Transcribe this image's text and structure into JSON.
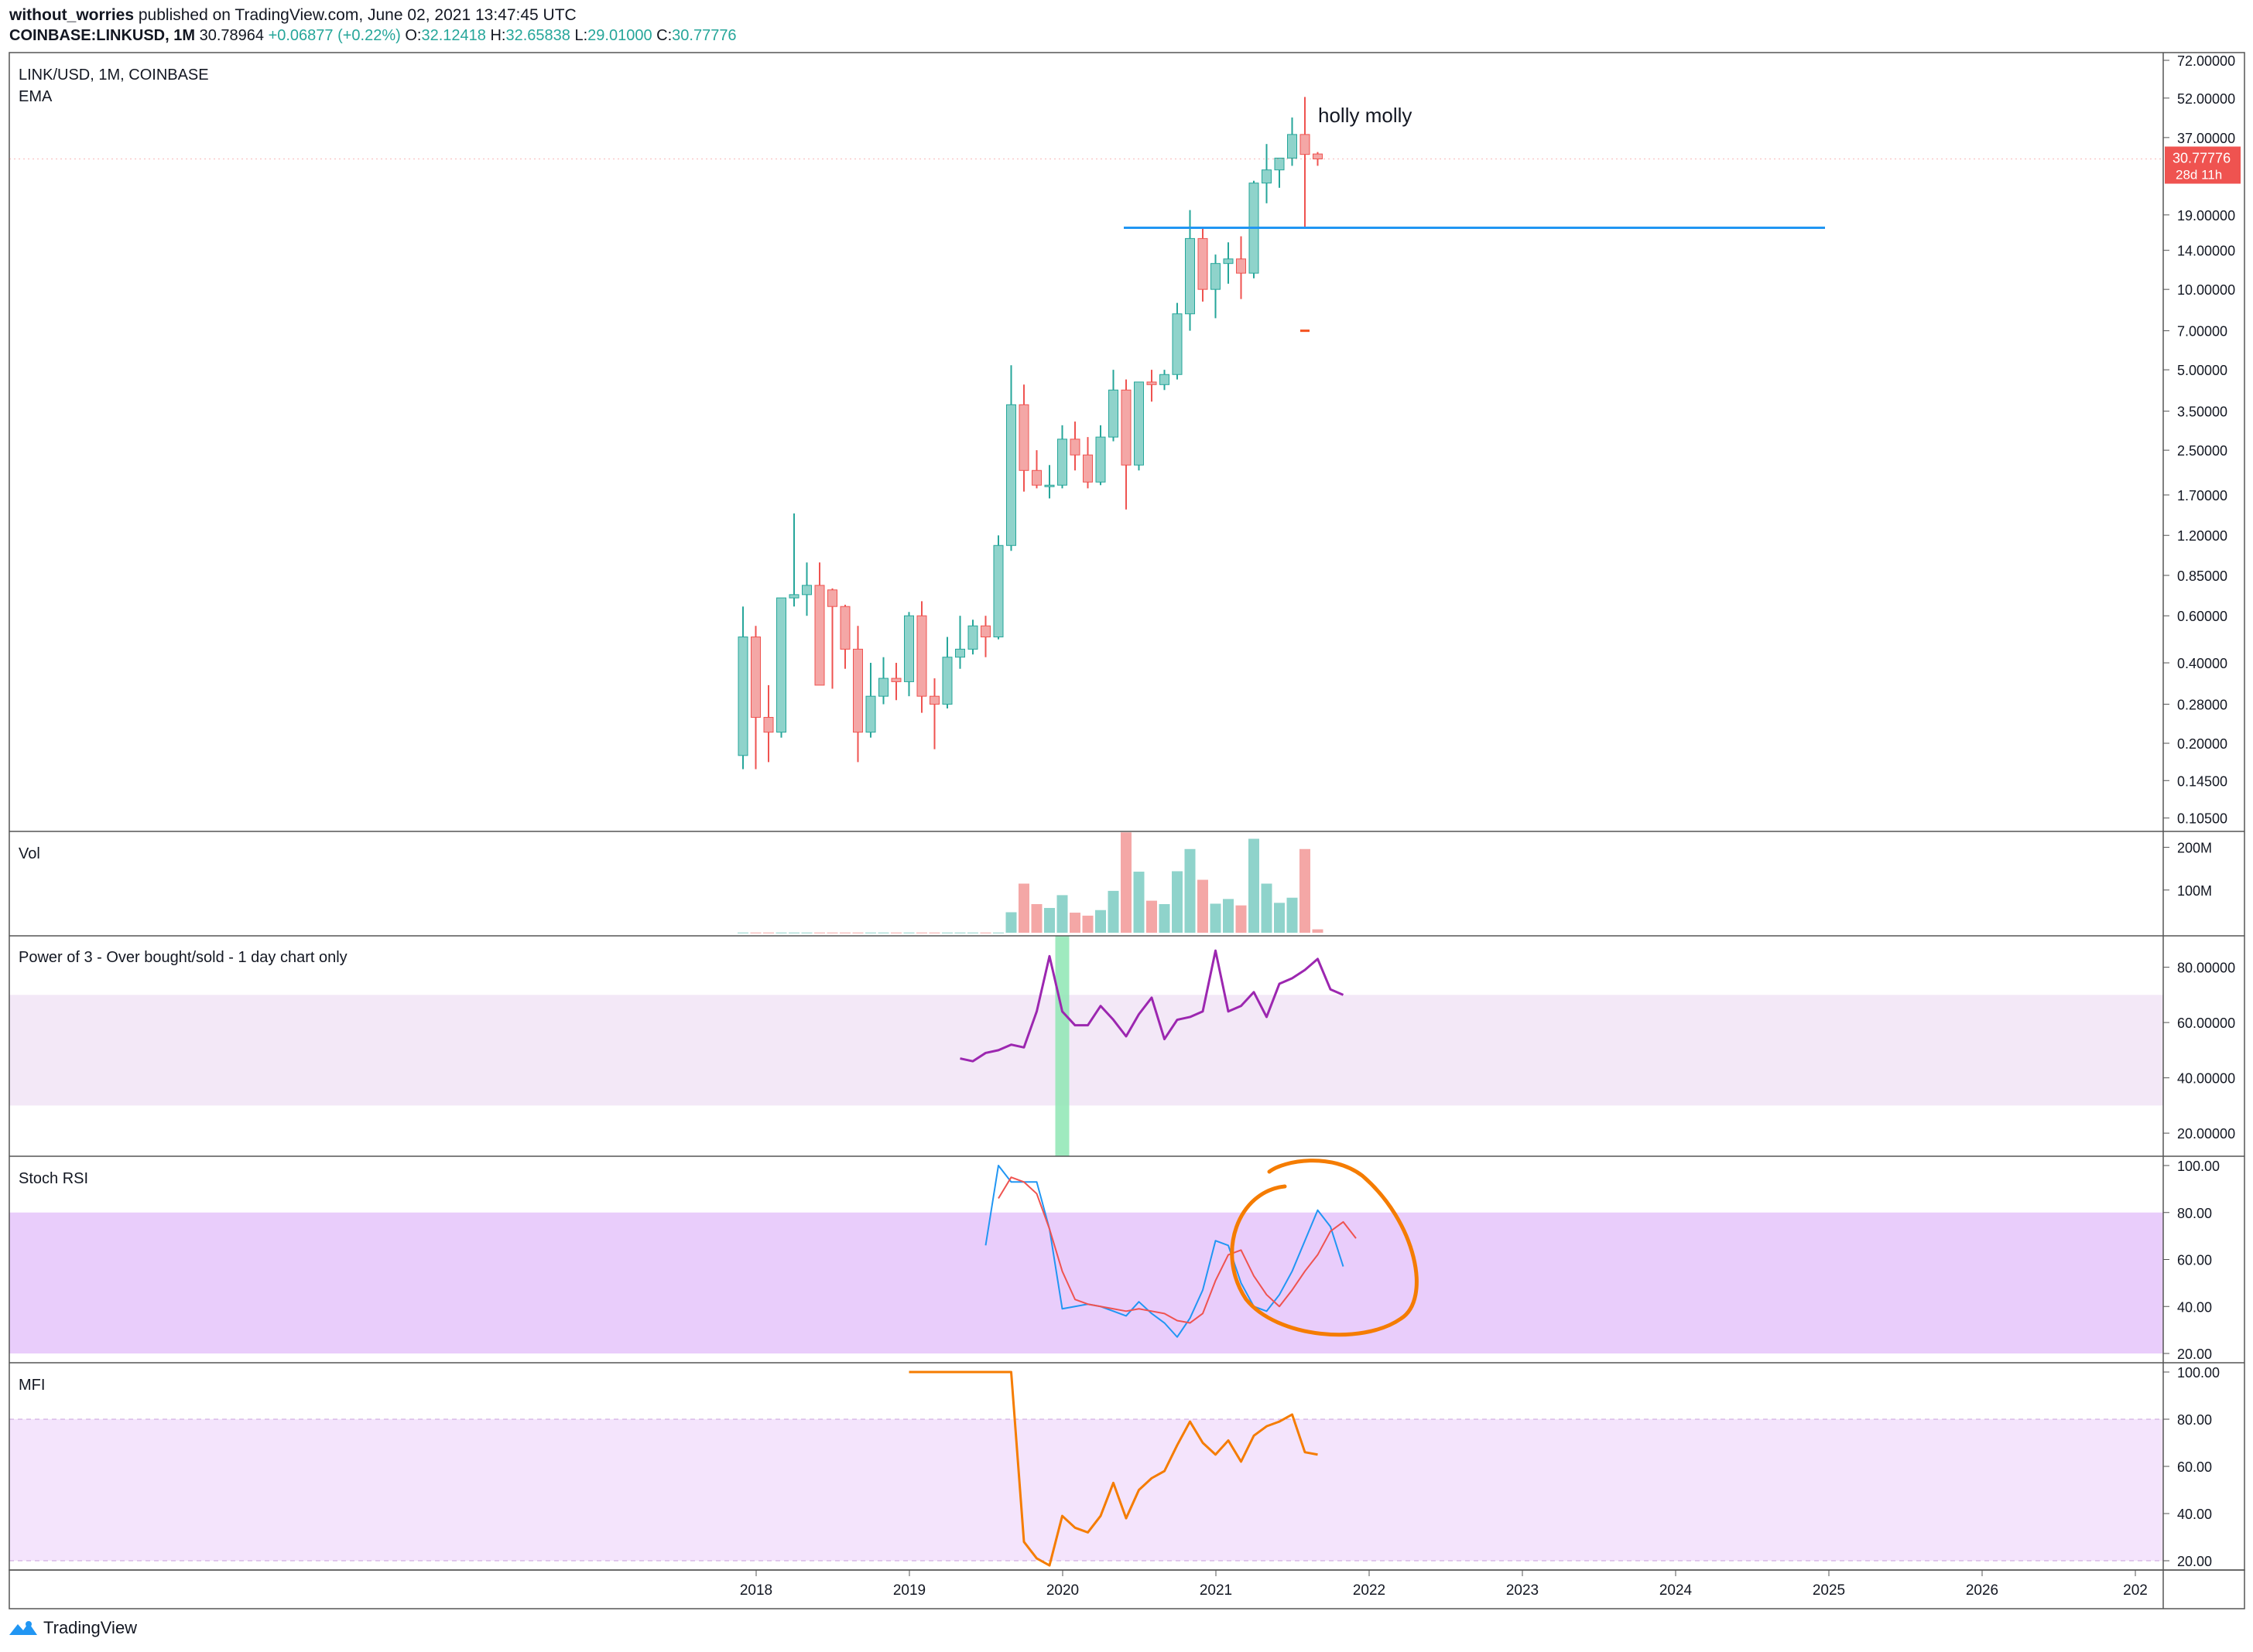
{
  "header": {
    "author": "without_worries",
    "published_text": "published on TradingView.com, June 02, 2021 13:47:45 UTC",
    "symbol": "COINBASE:LINKUSD, 1M",
    "last": "30.78964",
    "change": "+0.06877 (+0.22%)",
    "open_label": "O:",
    "open": "32.12418",
    "high_label": "H:",
    "high": "32.65838",
    "low_label": "L:",
    "low": "29.01000",
    "close_label": "C:",
    "close": "30.77776"
  },
  "main_pane": {
    "title": "LINK/USD, 1M, COINBASE",
    "indicator": "EMA",
    "annotation": "holly molly",
    "price_badge": "30.77776",
    "countdown_badge": "28d 11h",
    "price_ticks": [
      "72.00000",
      "52.00000",
      "37.00000",
      "30.77776",
      "19.00000",
      "14.00000",
      "10.00000",
      "7.00000",
      "5.00000",
      "3.50000",
      "2.50000",
      "1.70000",
      "1.20000",
      "0.85000",
      "0.60000",
      "0.40000",
      "0.28000",
      "0.20000",
      "0.14500",
      "0.10500"
    ]
  },
  "vol_pane": {
    "title": "Vol",
    "ticks": [
      "200M",
      "100M"
    ]
  },
  "power_pane": {
    "title": "Power of 3 - Over bought/sold - 1 day chart only",
    "ticks": [
      "80.00000",
      "60.00000",
      "40.00000",
      "20.00000"
    ]
  },
  "stoch_pane": {
    "title": "Stoch RSI",
    "ticks": [
      "100.00",
      "80.00",
      "60.00",
      "40.00",
      "20.00"
    ]
  },
  "mfi_pane": {
    "title": "MFI",
    "ticks": [
      "100.00",
      "80.00",
      "60.00",
      "40.00",
      "20.00"
    ]
  },
  "x_axis": {
    "ticks": [
      "2018",
      "2019",
      "2020",
      "2021",
      "2022",
      "2023",
      "2024",
      "2025",
      "2026",
      "202"
    ]
  },
  "footer": {
    "brand": "TradingView"
  },
  "colors": {
    "up": "#26a69a",
    "up_fill": "#8fd3cb",
    "down": "#ef5350",
    "down_fill": "#f4a7a6",
    "hline": "#2196f3",
    "power_line": "#9c27b0",
    "stoch_k": "#2196f3",
    "stoch_d": "#ef5350",
    "mfi_line": "#f57c00",
    "circle": "#f57c00"
  },
  "chart_data": [
    {
      "type": "candlestick",
      "title": "LINK/USD, 1M, COINBASE",
      "scale": "log",
      "x_unit": "months since first candle",
      "y_range": [
        0.1,
        72
      ],
      "fields": [
        "open",
        "high",
        "low",
        "close"
      ],
      "candles": [
        [
          0.18,
          0.65,
          0.16,
          0.5
        ],
        [
          0.5,
          0.55,
          0.16,
          0.25
        ],
        [
          0.25,
          0.33,
          0.17,
          0.22
        ],
        [
          0.22,
          0.7,
          0.21,
          0.7
        ],
        [
          0.7,
          1.45,
          0.65,
          0.72
        ],
        [
          0.72,
          0.95,
          0.6,
          0.78
        ],
        [
          0.78,
          0.95,
          0.33,
          0.33
        ],
        [
          0.75,
          0.76,
          0.32,
          0.65
        ],
        [
          0.65,
          0.66,
          0.38,
          0.45
        ],
        [
          0.45,
          0.55,
          0.17,
          0.22
        ],
        [
          0.22,
          0.4,
          0.21,
          0.3
        ],
        [
          0.3,
          0.42,
          0.28,
          0.35
        ],
        [
          0.35,
          0.4,
          0.29,
          0.34
        ],
        [
          0.34,
          0.62,
          0.3,
          0.6
        ],
        [
          0.6,
          0.68,
          0.26,
          0.3
        ],
        [
          0.3,
          0.35,
          0.19,
          0.28
        ],
        [
          0.28,
          0.5,
          0.27,
          0.42
        ],
        [
          0.42,
          0.6,
          0.38,
          0.45
        ],
        [
          0.45,
          0.58,
          0.43,
          0.55
        ],
        [
          0.55,
          0.6,
          0.42,
          0.5
        ],
        [
          0.5,
          1.2,
          0.49,
          1.1
        ],
        [
          1.1,
          5.2,
          1.05,
          3.7
        ],
        [
          3.7,
          4.4,
          1.75,
          2.1
        ],
        [
          2.1,
          2.5,
          1.8,
          1.85
        ],
        [
          1.85,
          2.2,
          1.65,
          1.85
        ],
        [
          1.85,
          3.1,
          1.8,
          2.75
        ],
        [
          2.75,
          3.2,
          2.1,
          2.4
        ],
        [
          2.4,
          2.8,
          1.8,
          1.9
        ],
        [
          1.9,
          3.1,
          1.85,
          2.8
        ],
        [
          2.8,
          5.0,
          2.7,
          4.2
        ],
        [
          4.2,
          4.6,
          1.5,
          2.2
        ],
        [
          2.2,
          4.5,
          2.1,
          4.5
        ],
        [
          4.5,
          5.0,
          3.8,
          4.4
        ],
        [
          4.4,
          5.0,
          4.2,
          4.8
        ],
        [
          4.8,
          8.9,
          4.6,
          8.1
        ],
        [
          8.1,
          19.8,
          7.0,
          15.5
        ],
        [
          15.5,
          17.0,
          9.0,
          10.0
        ],
        [
          10.0,
          13.5,
          7.8,
          12.5
        ],
        [
          12.5,
          15.0,
          10.5,
          13.0
        ],
        [
          13.0,
          15.8,
          9.2,
          11.5
        ],
        [
          11.5,
          25.5,
          11.0,
          25.0
        ],
        [
          25.0,
          35.0,
          21.0,
          28.0
        ],
        [
          28.0,
          31.0,
          24.0,
          31.0
        ],
        [
          31.0,
          44.0,
          29.0,
          38.0
        ],
        [
          38.0,
          52.5,
          17.0,
          32.0
        ],
        [
          32.12,
          32.66,
          29.01,
          30.78
        ]
      ],
      "horizontal_line": 17.0,
      "marker_price": 7.0
    },
    {
      "type": "bar",
      "title": "Vol",
      "y_range": [
        0,
        230
      ],
      "unit": "M",
      "values": [
        0.5,
        0.5,
        0.5,
        0.5,
        0.5,
        0.5,
        0.5,
        0.5,
        0.5,
        0.5,
        0.5,
        0.5,
        0.5,
        0.5,
        0.5,
        0.5,
        0.5,
        0.5,
        0.5,
        0.5,
        0.5,
        48,
        115,
        67,
        58,
        88,
        47,
        40,
        53,
        98,
        235,
        143,
        75,
        67,
        144,
        196,
        124,
        68,
        79,
        64,
        220,
        115,
        70,
        82,
        196,
        8
      ]
    },
    {
      "type": "line",
      "title": "Power of 3 - Over bought/sold - 1 day chart only",
      "y_range": [
        15,
        88
      ],
      "band": [
        30,
        70
      ],
      "series_start": 17,
      "values": [
        47,
        46,
        49,
        50,
        52,
        51,
        64,
        84,
        64,
        59,
        59,
        66,
        61,
        55,
        63,
        69,
        54,
        61,
        62,
        64,
        86,
        64,
        66,
        71,
        62,
        74,
        76,
        79,
        83,
        72,
        70
      ],
      "highlight_bar_month": 25
    },
    {
      "type": "line",
      "title": "Stoch RSI",
      "y_range": [
        20,
        100
      ],
      "band": [
        20,
        80
      ],
      "series": [
        {
          "start": 19,
          "values": [
            66,
            100,
            93,
            93,
            93,
            73,
            39,
            40,
            41,
            40,
            38,
            36,
            42,
            37,
            33,
            27,
            35,
            47,
            68,
            66,
            50,
            40,
            38,
            45,
            55,
            68,
            81,
            74,
            57
          ]
        },
        {
          "start": 20,
          "values": [
            86,
            95,
            93,
            88,
            73,
            55,
            43,
            41,
            40,
            39,
            38,
            39,
            38,
            37,
            34,
            33,
            37,
            51,
            62,
            64,
            53,
            45,
            40,
            47,
            55,
            62,
            72,
            76,
            69
          ]
        }
      ]
    },
    {
      "type": "line",
      "title": "MFI",
      "y_range": [
        20,
        100
      ],
      "band": [
        20,
        80
      ],
      "values_from_month": 13,
      "values": [
        100,
        100,
        100,
        100,
        100,
        100,
        100,
        100,
        100,
        28,
        21,
        18,
        39,
        34,
        32,
        39,
        53,
        38,
        50,
        55,
        58,
        69,
        79,
        70,
        65,
        71,
        62,
        73,
        77,
        79,
        82,
        66,
        65
      ]
    }
  ]
}
